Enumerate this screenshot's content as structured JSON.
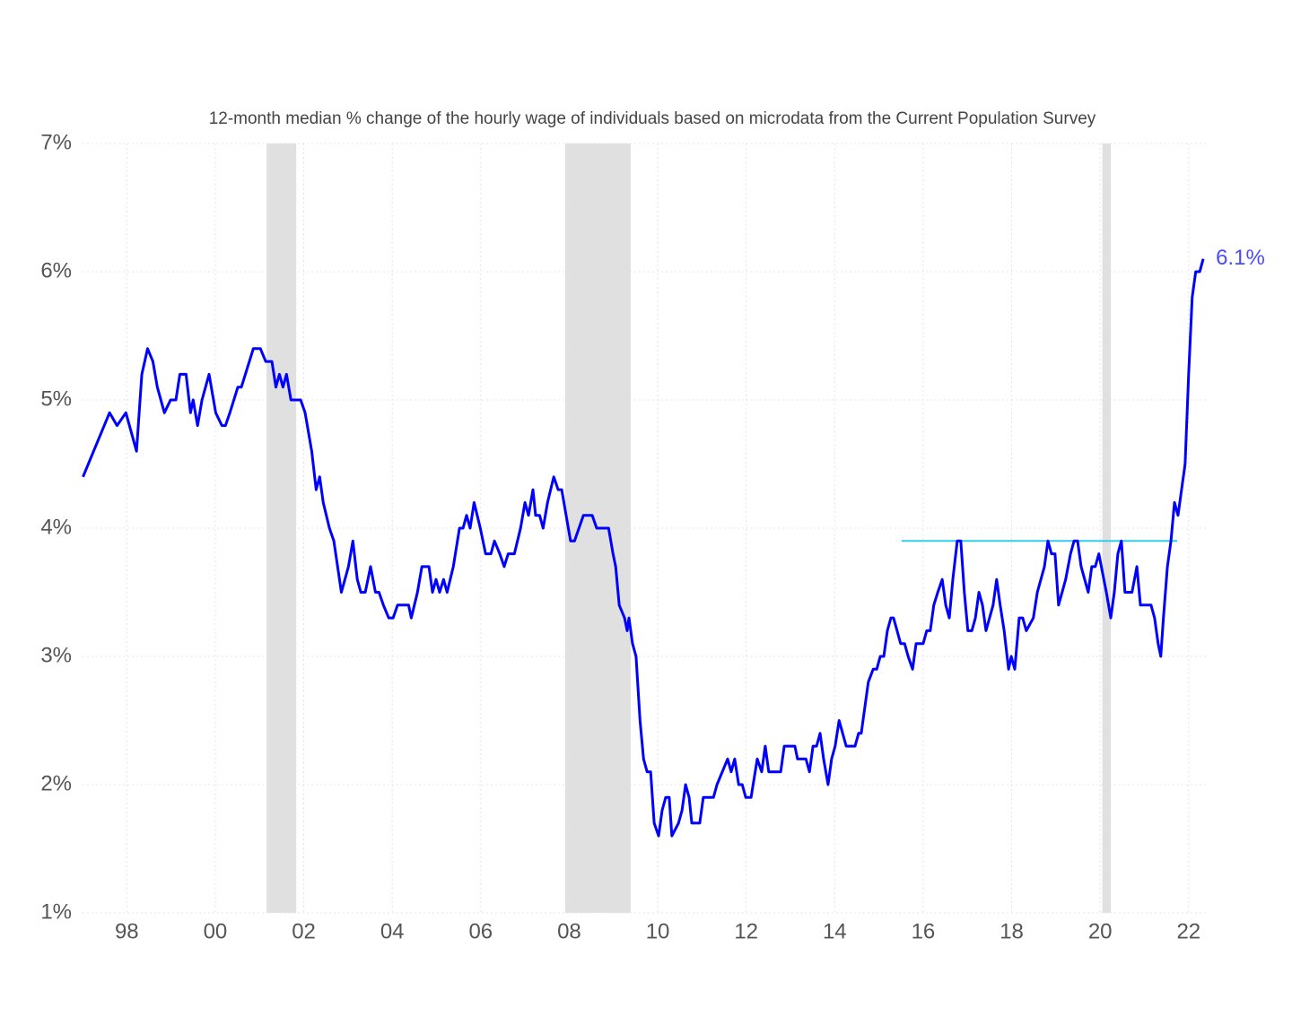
{
  "chart_data": {
    "type": "line",
    "title": "12-month median % change of the hourly wage of individuals based on microdata from the Current Population Survey",
    "xlim": [
      1997,
      2022.45
    ],
    "ylim": [
      1,
      7
    ],
    "xticks": [
      {
        "value": 1998,
        "label": "98"
      },
      {
        "value": 2000,
        "label": "00"
      },
      {
        "value": 2002,
        "label": "02"
      },
      {
        "value": 2004,
        "label": "04"
      },
      {
        "value": 2006,
        "label": "06"
      },
      {
        "value": 2008,
        "label": "08"
      },
      {
        "value": 2010,
        "label": "10"
      },
      {
        "value": 2012,
        "label": "12"
      },
      {
        "value": 2014,
        "label": "14"
      },
      {
        "value": 2016,
        "label": "16"
      },
      {
        "value": 2018,
        "label": "18"
      },
      {
        "value": 2020,
        "label": "20"
      },
      {
        "value": 2022,
        "label": "22"
      }
    ],
    "yticks": [
      {
        "value": 1,
        "label": "1%"
      },
      {
        "value": 2,
        "label": "2%"
      },
      {
        "value": 3,
        "label": "3%"
      },
      {
        "value": 4,
        "label": "4%"
      },
      {
        "value": 5,
        "label": "5%"
      },
      {
        "value": 6,
        "label": "6%"
      },
      {
        "value": 7,
        "label": "7%"
      }
    ],
    "grid": true,
    "shaded_ranges": [
      [
        2001.16,
        2001.83
      ],
      [
        2007.91,
        2009.39
      ],
      [
        2020.05,
        2020.24
      ]
    ],
    "shade_color": "#e0e0e0",
    "reference_lines": [
      {
        "y": 3.9,
        "x": [
          2015.51,
          2021.74
        ],
        "color": "#33ccee"
      }
    ],
    "annotations": [
      {
        "text": "6.1%",
        "x": 2022.33,
        "y": 6.1,
        "color": "#4a4aff"
      }
    ],
    "series": [
      {
        "color": "#0000ff",
        "x": [
          1997.01,
          1997.61,
          1997.78,
          1997.98,
          1998.22,
          1998.34,
          1998.47,
          1998.59,
          1998.69,
          1998.85,
          1998.99,
          1999.11,
          1999.2,
          1999.34,
          1999.44,
          1999.5,
          1999.6,
          1999.7,
          1999.86,
          2000.01,
          2000.15,
          2000.23,
          2000.33,
          2000.51,
          2000.59,
          2000.68,
          2000.86,
          2001.02,
          2001.14,
          2001.28,
          2001.37,
          2001.45,
          2001.53,
          2001.61,
          2001.71,
          2001.93,
          2002.03,
          2002.18,
          2002.28,
          2002.36,
          2002.44,
          2002.58,
          2002.68,
          2002.85,
          2003.01,
          2003.11,
          2003.21,
          2003.29,
          2003.39,
          2003.51,
          2003.62,
          2003.7,
          2003.8,
          2003.92,
          2004.02,
          2004.12,
          2004.37,
          2004.43,
          2004.57,
          2004.67,
          2004.83,
          2004.91,
          2004.99,
          2005.07,
          2005.16,
          2005.24,
          2005.38,
          2005.52,
          2005.6,
          2005.68,
          2005.76,
          2005.85,
          2005.99,
          2006.11,
          2006.23,
          2006.31,
          2006.43,
          2006.53,
          2006.62,
          2006.76,
          2006.9,
          2007.0,
          2007.08,
          2007.18,
          2007.24,
          2007.33,
          2007.41,
          2007.51,
          2007.65,
          2007.75,
          2007.83,
          2007.93,
          2008.03,
          2008.12,
          2008.22,
          2008.32,
          2008.52,
          2008.62,
          2008.89,
          2008.99,
          2009.05,
          2009.13,
          2009.25,
          2009.31,
          2009.35,
          2009.43,
          2009.51,
          2009.6,
          2009.68,
          2009.76,
          2009.84,
          2009.92,
          2010.02,
          2010.1,
          2010.18,
          2010.26,
          2010.32,
          2010.47,
          2010.55,
          2010.63,
          2010.71,
          2010.77,
          2010.95,
          2011.03,
          2011.26,
          2011.34,
          2011.46,
          2011.58,
          2011.66,
          2011.74,
          2011.83,
          2011.91,
          2011.99,
          2012.11,
          2012.25,
          2012.35,
          2012.43,
          2012.51,
          2012.78,
          2012.86,
          2013.1,
          2013.16,
          2013.35,
          2013.43,
          2013.51,
          2013.59,
          2013.67,
          2013.75,
          2013.85,
          2013.93,
          2014.01,
          2014.1,
          2014.18,
          2014.26,
          2014.46,
          2014.54,
          2014.6,
          2014.68,
          2014.76,
          2014.87,
          2014.95,
          2015.03,
          2015.11,
          2015.19,
          2015.27,
          2015.33,
          2015.41,
          2015.49,
          2015.58,
          2015.66,
          2015.76,
          2015.84,
          2016.0,
          2016.08,
          2016.16,
          2016.24,
          2016.33,
          2016.43,
          2016.51,
          2016.59,
          2016.67,
          2016.77,
          2016.85,
          2016.93,
          2017.01,
          2017.1,
          2017.18,
          2017.26,
          2017.34,
          2017.42,
          2017.5,
          2017.58,
          2017.66,
          2017.74,
          2017.83,
          2017.93,
          2017.99,
          2018.07,
          2018.17,
          2018.25,
          2018.33,
          2018.49,
          2018.58,
          2018.66,
          2018.74,
          2018.82,
          2018.9,
          2018.98,
          2019.06,
          2019.14,
          2019.22,
          2019.33,
          2019.41,
          2019.49,
          2019.57,
          2019.65,
          2019.73,
          2019.81,
          2019.89,
          2019.97,
          2020.14,
          2020.24,
          2020.32,
          2020.4,
          2020.48,
          2020.56,
          2020.72,
          2020.83,
          2020.91,
          2021.15,
          2021.23,
          2021.31,
          2021.37,
          2021.43,
          2021.52,
          2021.6,
          2021.68,
          2021.76,
          2021.84,
          2021.92,
          2022.0,
          2022.08,
          2022.16,
          2022.25,
          2022.33
        ],
        "values": [
          4.4,
          4.9,
          4.8,
          4.9,
          4.6,
          5.2,
          5.4,
          5.3,
          5.1,
          4.9,
          5.0,
          5.0,
          5.2,
          5.2,
          4.9,
          5.0,
          4.8,
          5.0,
          5.2,
          4.9,
          4.8,
          4.8,
          4.9,
          5.1,
          5.1,
          5.2,
          5.4,
          5.4,
          5.3,
          5.3,
          5.1,
          5.2,
          5.1,
          5.2,
          5.0,
          5.0,
          4.9,
          4.6,
          4.3,
          4.4,
          4.2,
          4.0,
          3.9,
          3.5,
          3.7,
          3.9,
          3.6,
          3.5,
          3.5,
          3.7,
          3.5,
          3.5,
          3.4,
          3.3,
          3.3,
          3.4,
          3.4,
          3.3,
          3.5,
          3.7,
          3.7,
          3.5,
          3.6,
          3.5,
          3.6,
          3.5,
          3.7,
          4.0,
          4.0,
          4.1,
          4.0,
          4.2,
          4.0,
          3.8,
          3.8,
          3.9,
          3.8,
          3.7,
          3.8,
          3.8,
          4.0,
          4.2,
          4.1,
          4.3,
          4.1,
          4.1,
          4.0,
          4.2,
          4.4,
          4.3,
          4.3,
          4.1,
          3.9,
          3.9,
          4.0,
          4.1,
          4.1,
          4.0,
          4.0,
          3.8,
          3.7,
          3.4,
          3.3,
          3.2,
          3.3,
          3.1,
          3.0,
          2.5,
          2.2,
          2.1,
          2.1,
          1.7,
          1.6,
          1.8,
          1.9,
          1.9,
          1.6,
          1.7,
          1.8,
          2.0,
          1.9,
          1.7,
          1.7,
          1.9,
          1.9,
          2.0,
          2.1,
          2.2,
          2.1,
          2.2,
          2.0,
          2.0,
          1.9,
          1.9,
          2.2,
          2.1,
          2.3,
          2.1,
          2.1,
          2.3,
          2.3,
          2.2,
          2.2,
          2.1,
          2.3,
          2.3,
          2.4,
          2.2,
          2.0,
          2.2,
          2.3,
          2.5,
          2.4,
          2.3,
          2.3,
          2.4,
          2.4,
          2.6,
          2.8,
          2.9,
          2.9,
          3.0,
          3.0,
          3.2,
          3.3,
          3.3,
          3.2,
          3.1,
          3.1,
          3.0,
          2.9,
          3.1,
          3.1,
          3.2,
          3.2,
          3.4,
          3.5,
          3.6,
          3.4,
          3.3,
          3.6,
          3.9,
          3.9,
          3.5,
          3.2,
          3.2,
          3.3,
          3.5,
          3.4,
          3.2,
          3.3,
          3.4,
          3.6,
          3.4,
          3.2,
          2.9,
          3.0,
          2.9,
          3.3,
          3.3,
          3.2,
          3.3,
          3.5,
          3.6,
          3.7,
          3.9,
          3.8,
          3.8,
          3.4,
          3.5,
          3.6,
          3.8,
          3.9,
          3.9,
          3.7,
          3.6,
          3.5,
          3.7,
          3.7,
          3.8,
          3.5,
          3.3,
          3.5,
          3.8,
          3.9,
          3.5,
          3.5,
          3.7,
          3.4,
          3.4,
          3.3,
          3.1,
          3.0,
          3.3,
          3.7,
          3.9,
          4.2,
          4.1,
          4.3,
          4.5,
          5.2,
          5.8,
          6.0,
          6.0,
          6.1
        ]
      }
    ]
  }
}
